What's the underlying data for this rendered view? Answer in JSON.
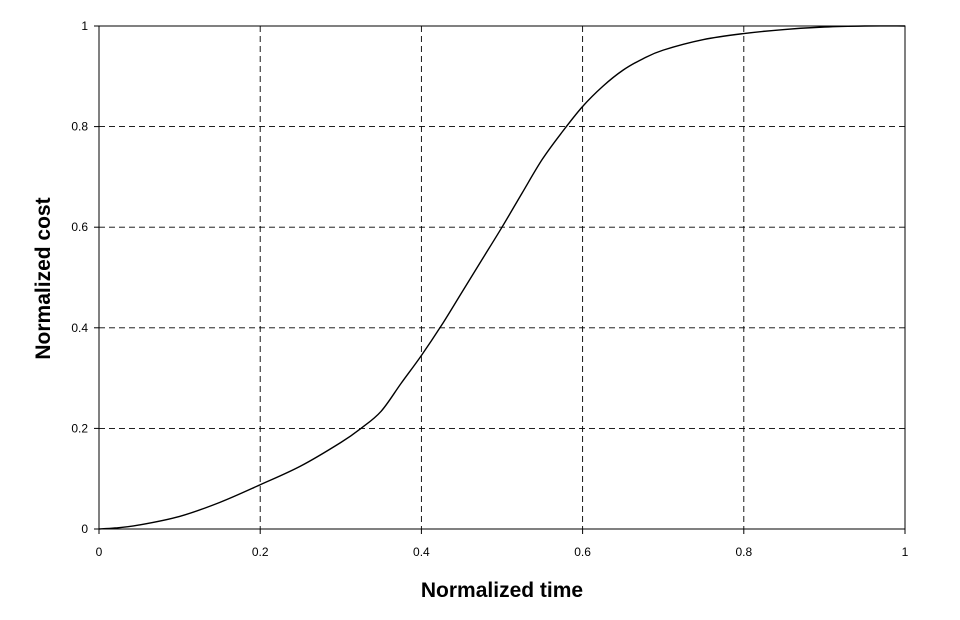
{
  "chart_data": {
    "type": "line",
    "xlabel": "Normalized time",
    "ylabel": "Normalized cost",
    "xlim": [
      0,
      1
    ],
    "ylim": [
      0,
      1
    ],
    "x_ticks": [
      "0",
      "0.2",
      "0.4",
      "0.6",
      "0.8",
      "1"
    ],
    "y_ticks": [
      "0",
      "0.2",
      "0.4",
      "0.6",
      "0.8",
      "1"
    ],
    "grid": true,
    "series": [
      {
        "color": "#000000",
        "x": [
          0,
          0.02,
          0.05,
          0.1,
          0.15,
          0.2,
          0.25,
          0.3,
          0.325,
          0.35,
          0.375,
          0.4,
          0.425,
          0.45,
          0.475,
          0.5,
          0.525,
          0.55,
          0.575,
          0.6,
          0.625,
          0.65,
          0.675,
          0.7,
          0.75,
          0.8,
          0.85,
          0.9,
          0.95,
          1.0
        ],
        "y": [
          0,
          0.002,
          0.008,
          0.025,
          0.053,
          0.088,
          0.125,
          0.172,
          0.2,
          0.234,
          0.29,
          0.345,
          0.405,
          0.47,
          0.535,
          0.6,
          0.668,
          0.735,
          0.79,
          0.84,
          0.88,
          0.912,
          0.935,
          0.952,
          0.973,
          0.985,
          0.993,
          0.998,
          1.0,
          1.0
        ]
      }
    ]
  }
}
